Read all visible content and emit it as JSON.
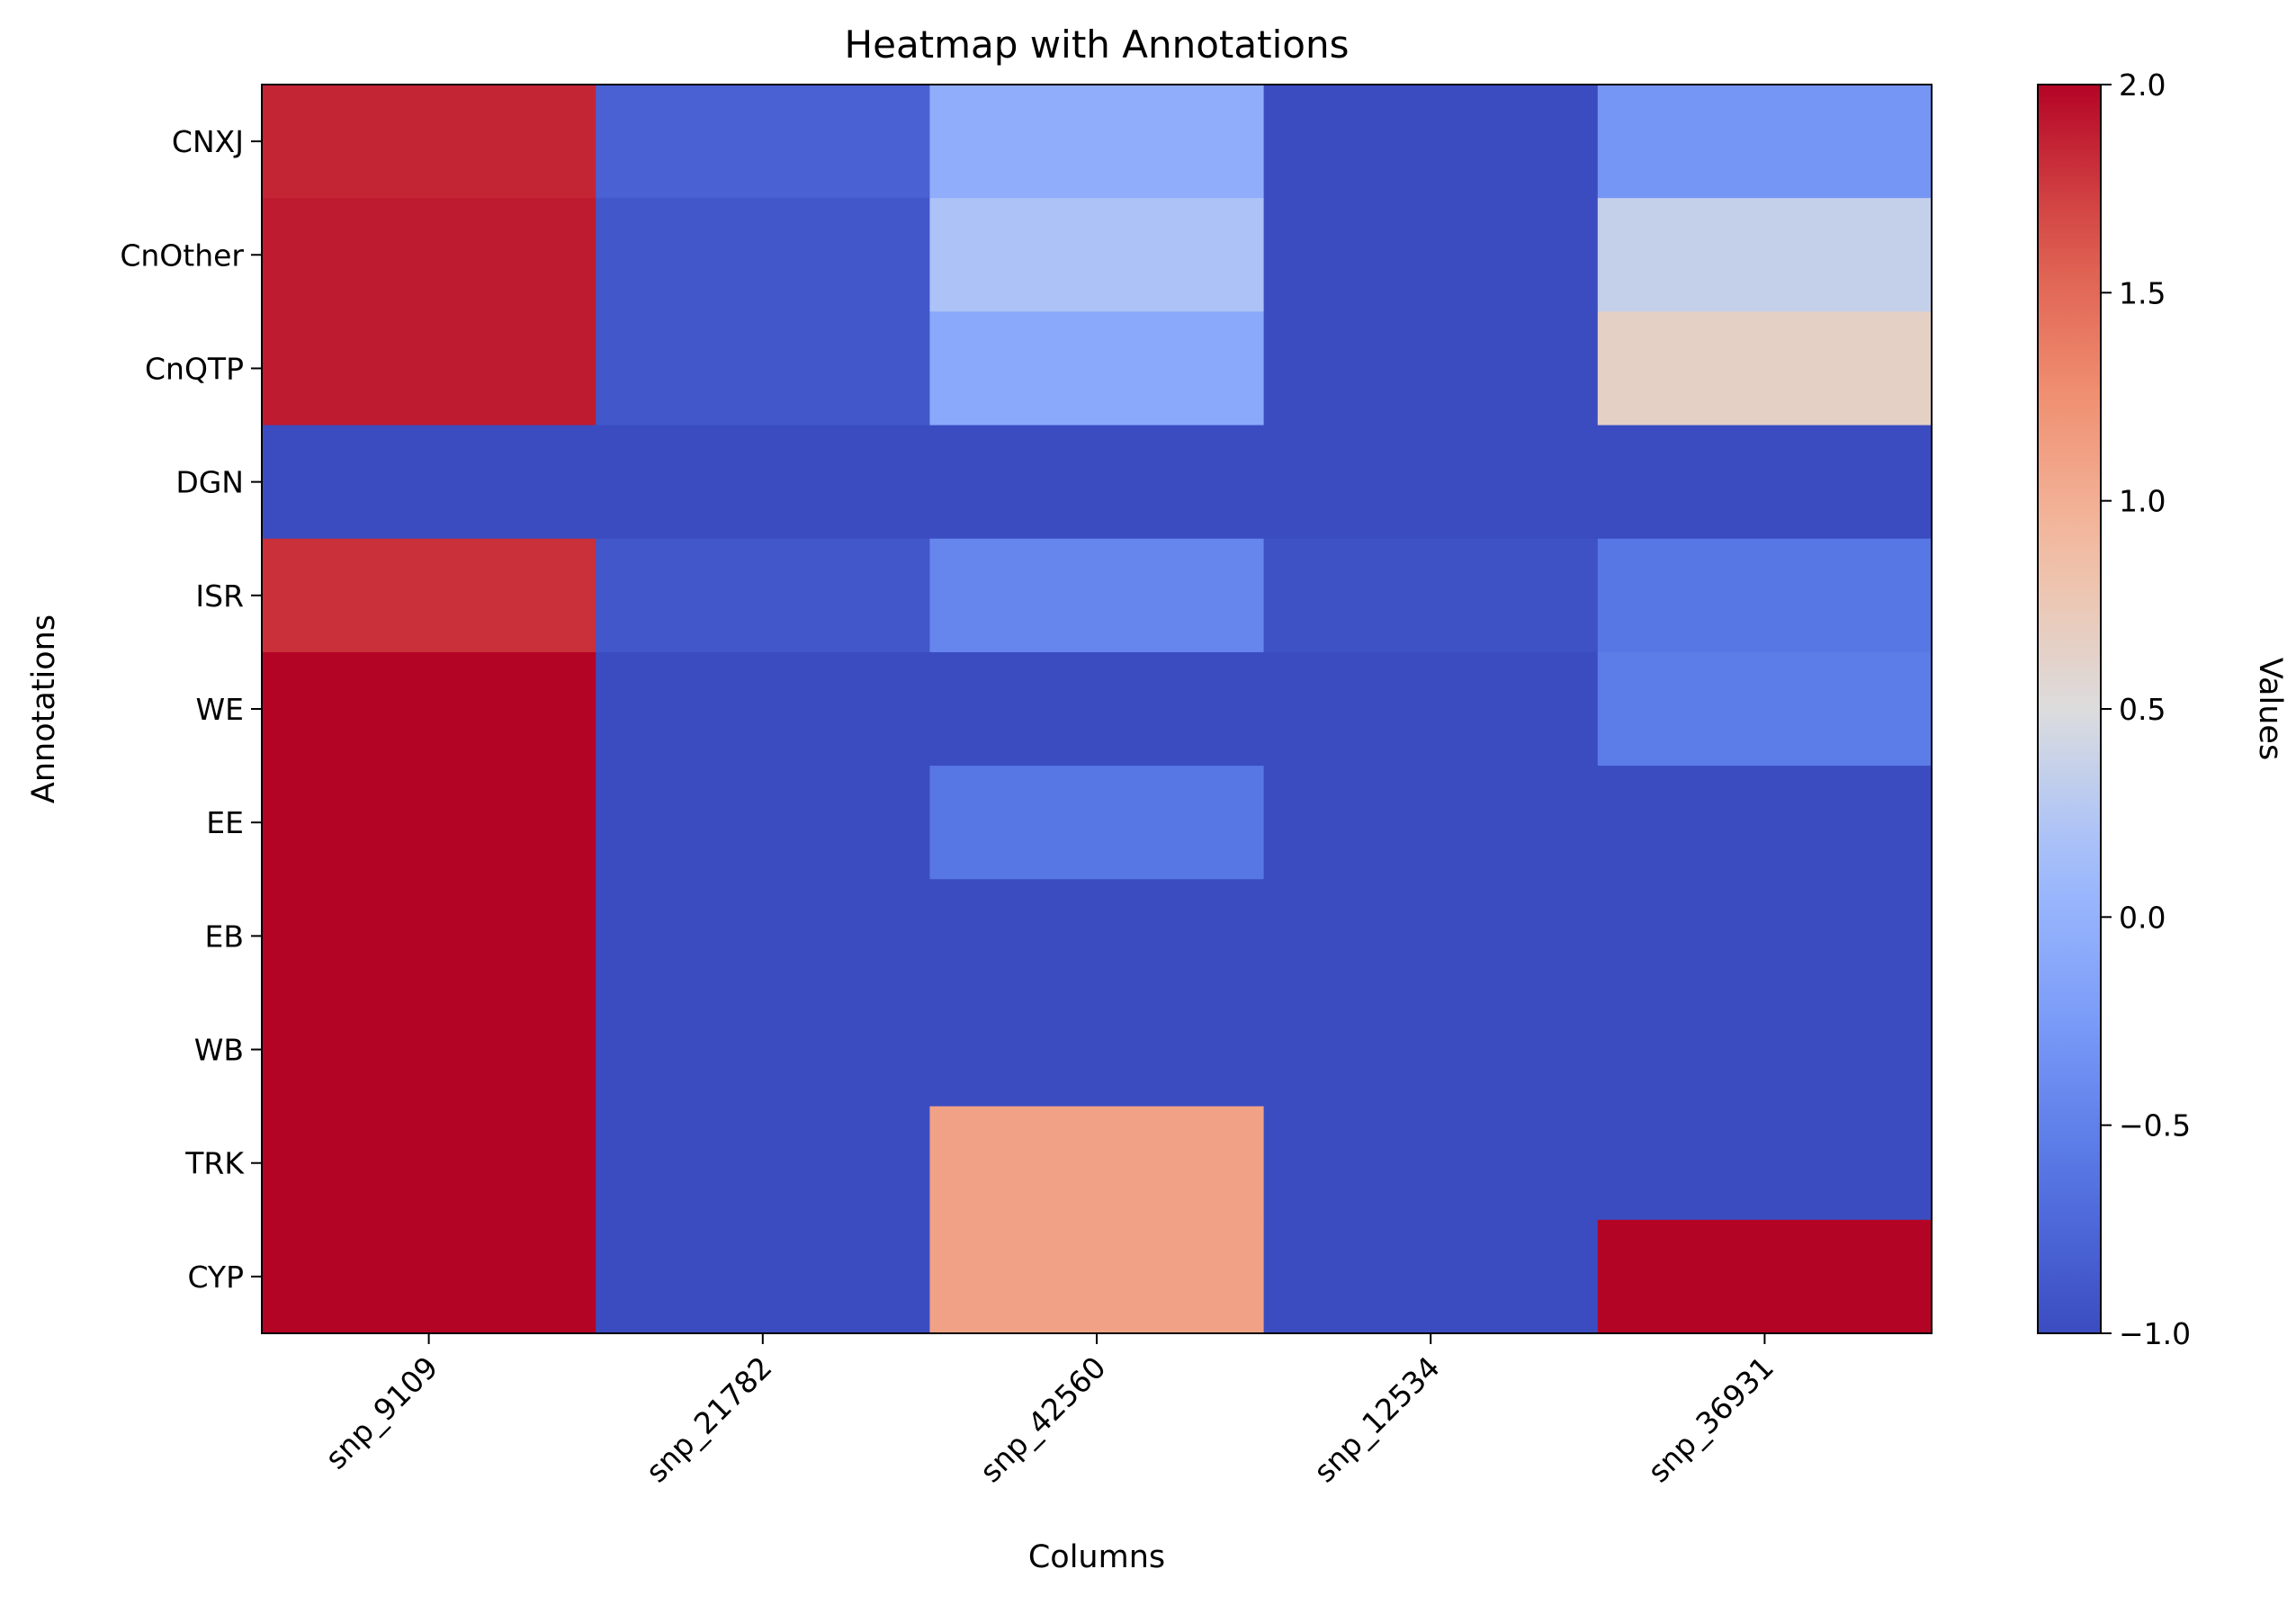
{
  "chart_data": {
    "type": "heatmap",
    "title": "Heatmap with Annotations",
    "xlabel": "Columns",
    "ylabel": "Annotations",
    "colorbar_label": "Values",
    "colormap": "coolwarm",
    "vmin": -1.0,
    "vmax": 2.0,
    "colorbar_ticks": [
      2.0,
      1.5,
      1.0,
      0.5,
      0.0,
      -0.5,
      -1.0
    ],
    "colorbar_tick_labels": [
      "2.0",
      "1.5",
      "1.0",
      "0.5",
      "0.0",
      "−0.5",
      "−1.0"
    ],
    "columns": [
      "snp_9109",
      "snp_21782",
      "snp_42560",
      "snp_12534",
      "snp_36931"
    ],
    "rows": [
      "CNXJ",
      "CnOther",
      "CnQTP",
      "DGN",
      "ISR",
      "WE",
      "EE",
      "EB",
      "WB",
      "TRK",
      "CYP"
    ],
    "values": [
      [
        1.85,
        -0.8,
        -0.05,
        -1.0,
        -0.3
      ],
      [
        1.9,
        -0.9,
        0.2,
        -1.0,
        0.35
      ],
      [
        1.9,
        -0.9,
        -0.1,
        -1.0,
        0.65
      ],
      [
        -1.0,
        -1.0,
        -1.0,
        -1.0,
        -1.0
      ],
      [
        1.8,
        -0.9,
        -0.45,
        -0.95,
        -0.6
      ],
      [
        2.0,
        -1.0,
        -1.0,
        -1.0,
        -0.55
      ],
      [
        2.0,
        -1.0,
        -0.6,
        -1.0,
        -1.0
      ],
      [
        2.0,
        -1.0,
        -1.0,
        -1.0,
        -1.0
      ],
      [
        2.0,
        -1.0,
        -1.0,
        -1.0,
        -1.0
      ],
      [
        2.0,
        -1.0,
        1.1,
        -1.0,
        -1.0
      ],
      [
        2.0,
        -1.0,
        1.1,
        -1.0,
        2.0
      ]
    ]
  }
}
